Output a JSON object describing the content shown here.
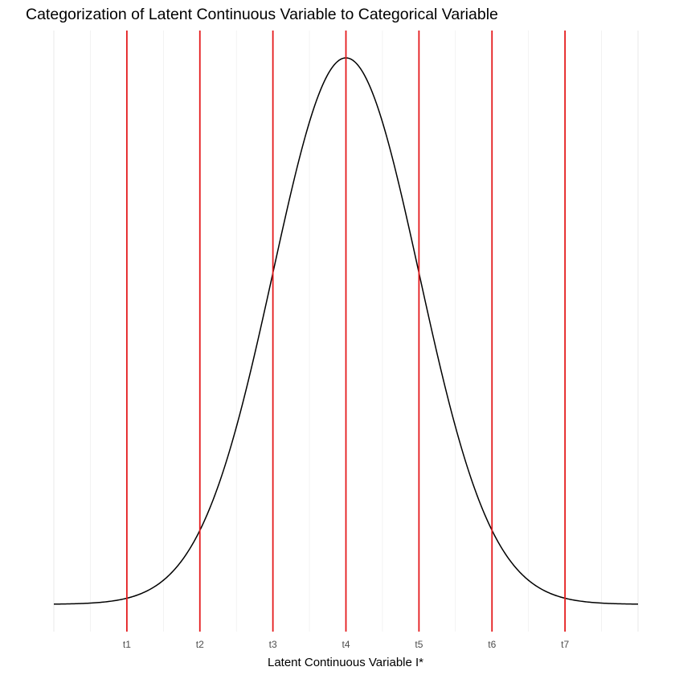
{
  "chart_data": {
    "type": "line",
    "title": "Categorization of Latent Continuous Variable to Categorical Variable",
    "xlabel": "Latent Continuous Variable I*",
    "ylabel": "",
    "xlim": [
      -4,
      4
    ],
    "x_grid": [
      -4,
      -3.5,
      -3,
      -2.5,
      -2,
      -1.5,
      -1,
      -0.5,
      0,
      0.5,
      1,
      1.5,
      2,
      2.5,
      3,
      3.5,
      4
    ],
    "curve": {
      "name": "",
      "kind": "standard-normal-density",
      "mean": 0,
      "sd": 1
    },
    "thresholds": [
      {
        "label": "t1",
        "x": -3
      },
      {
        "label": "t2",
        "x": -2
      },
      {
        "label": "t3",
        "x": -1
      },
      {
        "label": "t4",
        "x": 0
      },
      {
        "label": "t5",
        "x": 1
      },
      {
        "label": "t6",
        "x": 2
      },
      {
        "label": "t7",
        "x": 3
      }
    ],
    "grid": true,
    "legend": "none",
    "colors": {
      "curve": "#000000",
      "thresholds": "#e41a1c",
      "grid": "#ebebeb"
    }
  }
}
